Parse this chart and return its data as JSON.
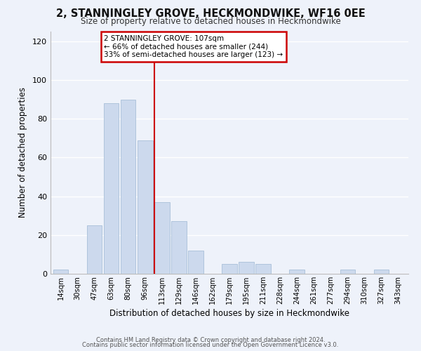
{
  "title": "2, STANNINGLEY GROVE, HECKMONDWIKE, WF16 0EE",
  "subtitle": "Size of property relative to detached houses in Heckmondwike",
  "xlabel": "Distribution of detached houses by size in Heckmondwike",
  "ylabel": "Number of detached properties",
  "bar_color": "#ccd9ed",
  "bar_edge_color": "#a8bfd8",
  "highlight_line_color": "#cc0000",
  "categories": [
    "14sqm",
    "30sqm",
    "47sqm",
    "63sqm",
    "80sqm",
    "96sqm",
    "113sqm",
    "129sqm",
    "146sqm",
    "162sqm",
    "179sqm",
    "195sqm",
    "211sqm",
    "228sqm",
    "244sqm",
    "261sqm",
    "277sqm",
    "294sqm",
    "310sqm",
    "327sqm",
    "343sqm"
  ],
  "values": [
    2,
    0,
    25,
    88,
    90,
    69,
    37,
    27,
    12,
    0,
    5,
    6,
    5,
    0,
    2,
    0,
    0,
    2,
    0,
    2,
    0
  ],
  "ylim": [
    0,
    125
  ],
  "yticks": [
    0,
    20,
    40,
    60,
    80,
    100,
    120
  ],
  "annotation_title": "2 STANNINGLEY GROVE: 107sqm",
  "annotation_line1": "← 66% of detached houses are smaller (244)",
  "annotation_line2": "33% of semi-detached houses are larger (123) →",
  "annotation_box_color": "#ffffff",
  "annotation_box_edge_color": "#cc0000",
  "highlight_bar_index": 6,
  "footer_line1": "Contains HM Land Registry data © Crown copyright and database right 2024.",
  "footer_line2": "Contains public sector information licensed under the Open Government Licence v3.0.",
  "background_color": "#eef2fa",
  "grid_color": "#ffffff"
}
